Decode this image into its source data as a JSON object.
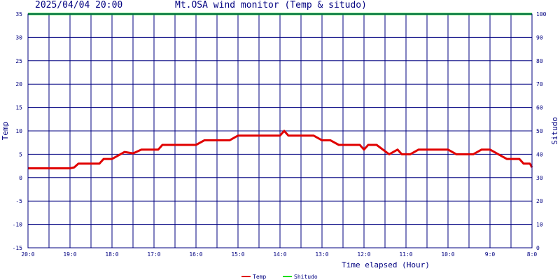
{
  "header": {
    "datetime": "2025/04/04 20:00",
    "title": "Mt.OSA wind monitor (Temp & situdo)"
  },
  "colors": {
    "frame": "#000080",
    "grid": "#000080",
    "temp": "#e00000",
    "situdo": "#00dd00",
    "text": "#000080"
  },
  "chart_data": {
    "type": "line",
    "xlabel": "Time elapsed (Hour)",
    "ylabel": "Temp",
    "y2label": "Situdo",
    "ylim": [
      -15,
      35
    ],
    "y2lim": [
      0,
      100
    ],
    "yticks": [
      -15,
      -10,
      -5,
      0,
      5,
      10,
      15,
      20,
      25,
      30,
      35
    ],
    "y2ticks": [
      0,
      10,
      20,
      30,
      40,
      50,
      60,
      70,
      80,
      90,
      100
    ],
    "xlim": [
      20,
      8
    ],
    "xticks": [
      {
        "x": 20,
        "label": "20:0"
      },
      {
        "x": 19,
        "label": "19:0"
      },
      {
        "x": 18,
        "label": "18:0"
      },
      {
        "x": 17,
        "label": "17:0"
      },
      {
        "x": 16,
        "label": "16:0"
      },
      {
        "x": 15,
        "label": "15:0"
      },
      {
        "x": 14,
        "label": "14:0"
      },
      {
        "x": 13,
        "label": "13:0"
      },
      {
        "x": 12,
        "label": "12:0"
      },
      {
        "x": 11,
        "label": "11:0"
      },
      {
        "x": 10,
        "label": "10:0"
      },
      {
        "x": 9,
        "label": "9:0"
      },
      {
        "x": 8,
        "label": "8:0"
      }
    ],
    "grid": true,
    "legend": "bottom-center",
    "series": [
      {
        "name": "Temp",
        "axis": "left",
        "color": "#e00000",
        "points": [
          [
            20.0,
            2
          ],
          [
            19.0,
            2
          ],
          [
            18.9,
            2.2
          ],
          [
            18.8,
            3
          ],
          [
            18.3,
            3
          ],
          [
            18.2,
            4
          ],
          [
            18.0,
            4
          ],
          [
            17.7,
            5.5
          ],
          [
            17.5,
            5.2
          ],
          [
            17.3,
            6
          ],
          [
            16.9,
            6
          ],
          [
            16.8,
            7
          ],
          [
            16.0,
            7
          ],
          [
            15.8,
            8
          ],
          [
            15.2,
            8
          ],
          [
            15.0,
            9
          ],
          [
            14.0,
            9
          ],
          [
            13.9,
            10
          ],
          [
            13.8,
            9
          ],
          [
            13.2,
            9
          ],
          [
            13.0,
            8
          ],
          [
            12.8,
            8
          ],
          [
            12.6,
            7
          ],
          [
            12.1,
            7
          ],
          [
            12.0,
            6
          ],
          [
            11.9,
            7
          ],
          [
            11.7,
            7
          ],
          [
            11.4,
            5
          ],
          [
            11.2,
            6
          ],
          [
            11.1,
            5
          ],
          [
            10.9,
            5
          ],
          [
            10.7,
            6
          ],
          [
            10.0,
            6
          ],
          [
            9.8,
            5
          ],
          [
            9.4,
            5
          ],
          [
            9.2,
            6
          ],
          [
            9.0,
            6
          ],
          [
            8.8,
            5
          ],
          [
            8.6,
            4
          ],
          [
            8.3,
            4
          ],
          [
            8.2,
            3
          ],
          [
            8.05,
            3
          ],
          [
            8.0,
            2.2
          ]
        ]
      },
      {
        "name": "Shitudo",
        "axis": "right",
        "color": "#00dd00",
        "points": [
          [
            20.0,
            100
          ],
          [
            8.0,
            100
          ]
        ]
      }
    ]
  }
}
